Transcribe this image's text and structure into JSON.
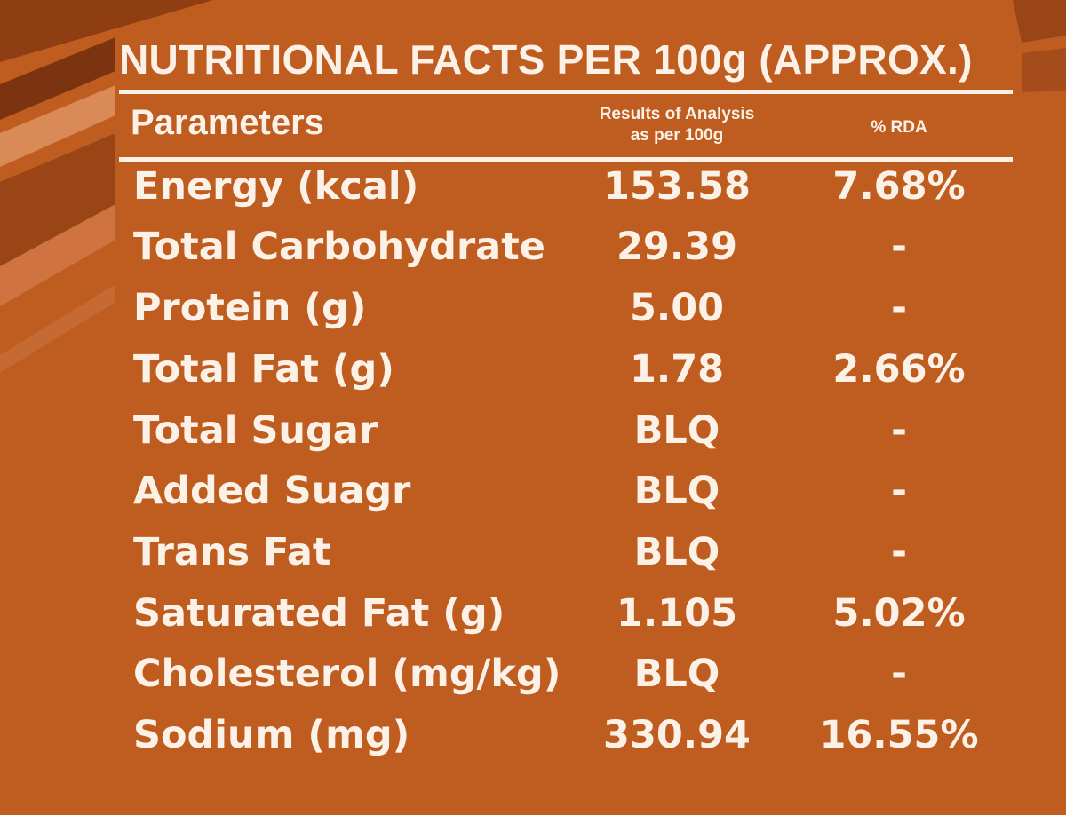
{
  "title": "NUTRITIONAL FACTS PER 100g (APPROX.)",
  "headers": {
    "parameters": "Parameters",
    "results_line1": "Results of Analysis",
    "results_line2": "as per 100g",
    "rda": "% RDA"
  },
  "rows": [
    {
      "parameter": "Energy (kcal)",
      "result": "153.58",
      "rda": "7.68%"
    },
    {
      "parameter": "Total Carbohydrate",
      "result": "29.39",
      "rda": "-"
    },
    {
      "parameter": "Protein (g)",
      "result": "5.00",
      "rda": "-"
    },
    {
      "parameter": "Total Fat (g)",
      "result": "1.78",
      "rda": "2.66%"
    },
    {
      "parameter": "Total Sugar",
      "result": "BLQ",
      "rda": "-"
    },
    {
      "parameter": "Added Suagr",
      "result": "BLQ",
      "rda": "-"
    },
    {
      "parameter": "Trans Fat",
      "result": "BLQ",
      "rda": "-"
    },
    {
      "parameter": "Saturated Fat (g)",
      "result": "1.105",
      "rda": "5.02%"
    },
    {
      "parameter": "Cholesterol (mg/kg)",
      "result": "BLQ",
      "rda": "-"
    },
    {
      "parameter": "Sodium (mg)",
      "result": "330.94",
      "rda": "16.55%"
    }
  ],
  "colors": {
    "background": "#bf5d20",
    "text": "#fbf1e6",
    "stripe_dark": "#8f3d12",
    "stripe_light": "#d98a56"
  }
}
